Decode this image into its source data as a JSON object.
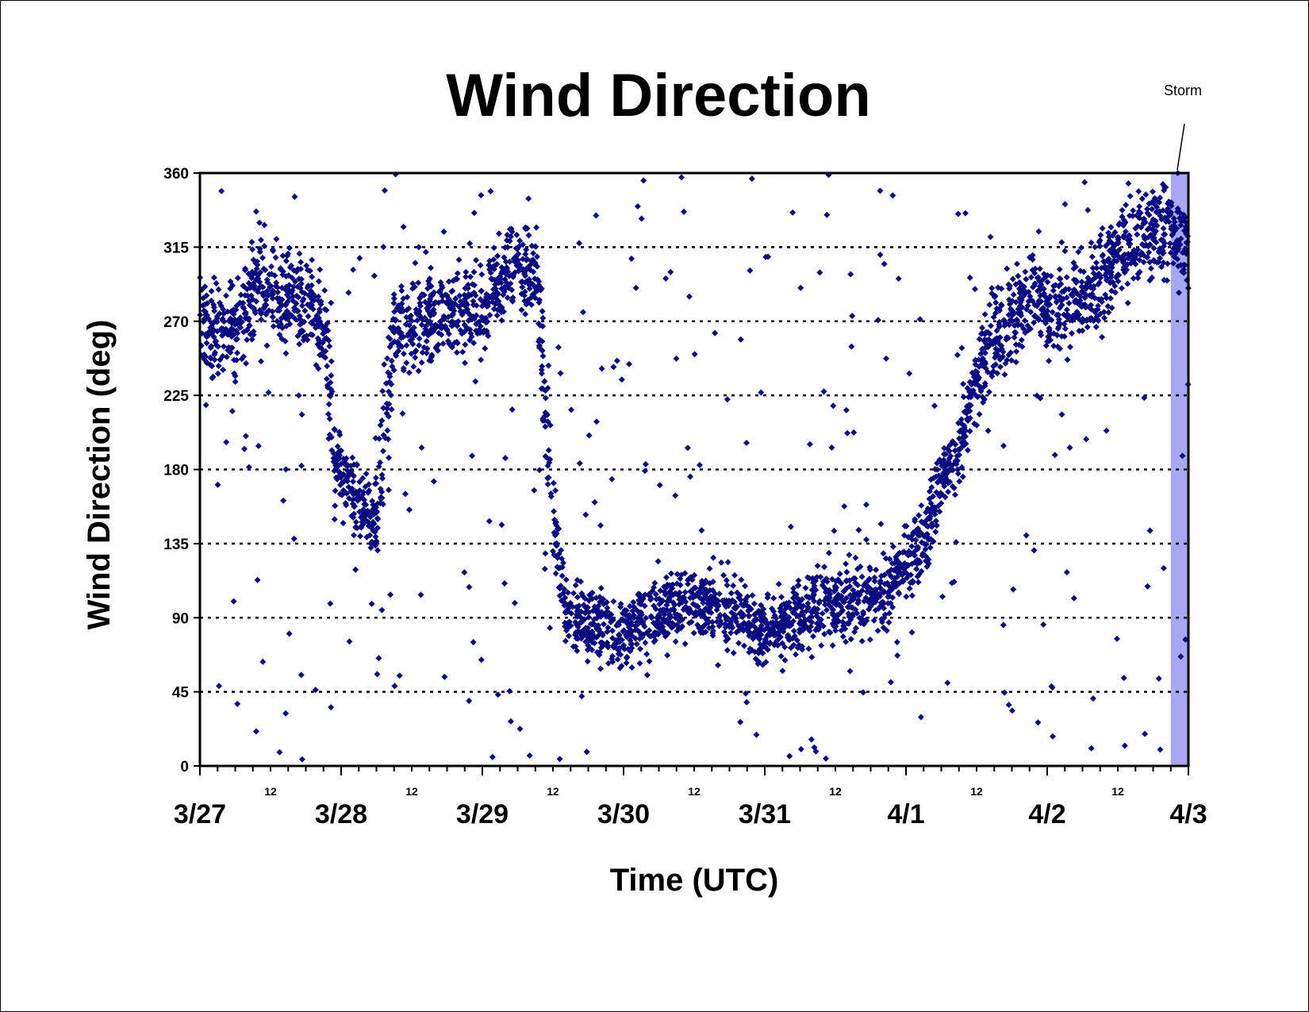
{
  "chart_data": {
    "type": "scatter",
    "title": "Wind Direction",
    "xlabel": "Time (UTC)",
    "ylabel": "Wind Direction (deg)",
    "ylim": [
      0,
      360
    ],
    "yticks": [
      "0",
      "45",
      "90",
      "135",
      "180",
      "225",
      "270",
      "315",
      "360"
    ],
    "xlim": [
      "3/27 00:00",
      "4/3 00:00"
    ],
    "xticks_major": [
      "3/27",
      "3/28",
      "3/29",
      "3/30",
      "3/31",
      "4/1",
      "4/2",
      "4/3"
    ],
    "xticks_minor_label": "12",
    "grid": "horizontal dotted",
    "marker": "diamond",
    "colors": {
      "points": "#0a0a82",
      "storm": "#a8a8f2",
      "grid": "#000000"
    },
    "annotation": {
      "text": "Storm",
      "x": "4/2 22:00"
    },
    "storm_band": {
      "start": "4/2 21:00",
      "end": "4/3 00:00"
    },
    "series": [
      {
        "name": "",
        "trend": [
          [
            "3/27 00:00",
            265
          ],
          [
            "3/27 03:00",
            265
          ],
          [
            "3/27 06:00",
            265
          ],
          [
            "3/27 09:00",
            290
          ],
          [
            "3/27 12:00",
            290
          ],
          [
            "3/27 15:00",
            285
          ],
          [
            "3/27 18:00",
            280
          ],
          [
            "3/27 21:00",
            265
          ],
          [
            "3/27 23:00",
            185
          ],
          [
            "3/28 03:00",
            160
          ],
          [
            "3/28 06:00",
            150
          ],
          [
            "3/28 09:00",
            265
          ],
          [
            "3/28 12:00",
            270
          ],
          [
            "3/28 15:00",
            270
          ],
          [
            "3/28 18:00",
            275
          ],
          [
            "3/28 21:00",
            280
          ],
          [
            "3/29 00:00",
            270
          ],
          [
            "3/29 03:00",
            300
          ],
          [
            "3/29 06:00",
            310
          ],
          [
            "3/29 09:00",
            300
          ],
          [
            "3/29 12:00",
            150
          ],
          [
            "3/29 14:00",
            95
          ],
          [
            "3/29 18:00",
            85
          ],
          [
            "3/30 00:00",
            80
          ],
          [
            "3/30 06:00",
            95
          ],
          [
            "3/30 12:00",
            100
          ],
          [
            "3/30 18:00",
            95
          ],
          [
            "3/31 00:00",
            82
          ],
          [
            "3/31 06:00",
            90
          ],
          [
            "3/31 12:00",
            100
          ],
          [
            "3/31 18:00",
            100
          ],
          [
            "3/31 20:00",
            105
          ],
          [
            "4/1 00:00",
            125
          ],
          [
            "4/1 03:00",
            135
          ],
          [
            "4/1 06:00",
            175
          ],
          [
            "4/1 09:00",
            190
          ],
          [
            "4/1 12:00",
            240
          ],
          [
            "4/1 15:00",
            265
          ],
          [
            "4/1 18:00",
            270
          ],
          [
            "4/1 21:00",
            285
          ],
          [
            "4/2 00:00",
            275
          ],
          [
            "4/2 06:00",
            285
          ],
          [
            "4/2 09:00",
            295
          ],
          [
            "4/2 12:00",
            310
          ],
          [
            "4/2 15:00",
            320
          ],
          [
            "4/2 18:00",
            325
          ],
          [
            "4/2 21:00",
            330
          ],
          [
            "4/3 00:00",
            310
          ]
        ]
      }
    ]
  }
}
